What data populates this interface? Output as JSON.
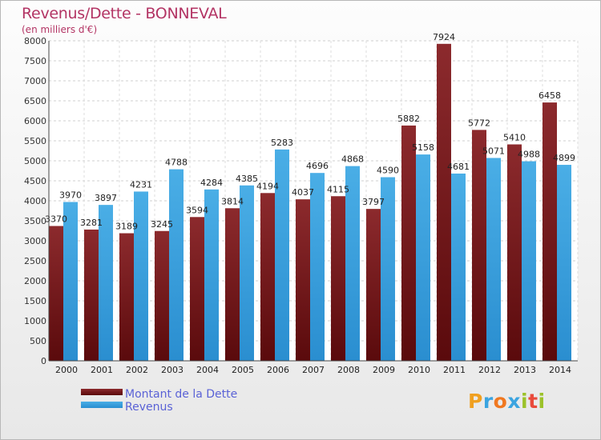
{
  "title": "Revenus/Dette - BONNEVAL",
  "subtitle": "(en milliers d'€)",
  "logo": {
    "text": "Proxiti",
    "colors": [
      "#f0a020",
      "#3ba4e0",
      "#f07820",
      "#3ba4e0",
      "#9cc22a",
      "#e94b3c",
      "#9cc22a"
    ]
  },
  "chart_data": {
    "type": "bar",
    "title": "Revenus/Dette - BONNEVAL",
    "ylim": [
      0,
      8000
    ],
    "ytick_step": 500,
    "yticks": [
      "0",
      "500",
      "1000",
      "1500",
      "2000",
      "2500",
      "3000",
      "3500",
      "4000",
      "4500",
      "5000",
      "5500",
      "6000",
      "6500",
      "7000",
      "7500",
      "8000"
    ],
    "grid": true,
    "legend_position": "bottom-left",
    "categories": [
      "2000",
      "2001",
      "2002",
      "2003",
      "2004",
      "2005",
      "2006",
      "2007",
      "2008",
      "2009",
      "2010",
      "2011",
      "2012",
      "2013",
      "2014"
    ],
    "series": [
      {
        "name": "Montant de la Dette",
        "color": "#7a1f22",
        "values": [
          3370,
          3281,
          3189,
          3245,
          3594,
          3814,
          4194,
          4037,
          4115,
          3797,
          5882,
          7924,
          5772,
          5410,
          6458
        ],
        "labels": [
          "3370",
          "3281",
          "3189",
          "3245",
          "3594",
          "3814",
          "4194",
          "4037",
          "4115",
          "3797",
          "5882",
          "7924",
          "5772",
          "5410",
          "6458"
        ]
      },
      {
        "name": "Revenus",
        "color": "#3ba4e0",
        "values": [
          3970,
          3897,
          4231,
          4788,
          4284,
          4385,
          5283,
          4696,
          4868,
          4590,
          5158,
          4681,
          5071,
          4988,
          4899
        ],
        "labels": [
          "3970",
          "3897",
          "4231",
          "4788",
          "4284",
          "4385",
          "5283",
          "4696",
          "4868",
          "4590",
          "5158",
          "4681",
          "5071",
          "4988",
          "4899"
        ]
      }
    ]
  }
}
